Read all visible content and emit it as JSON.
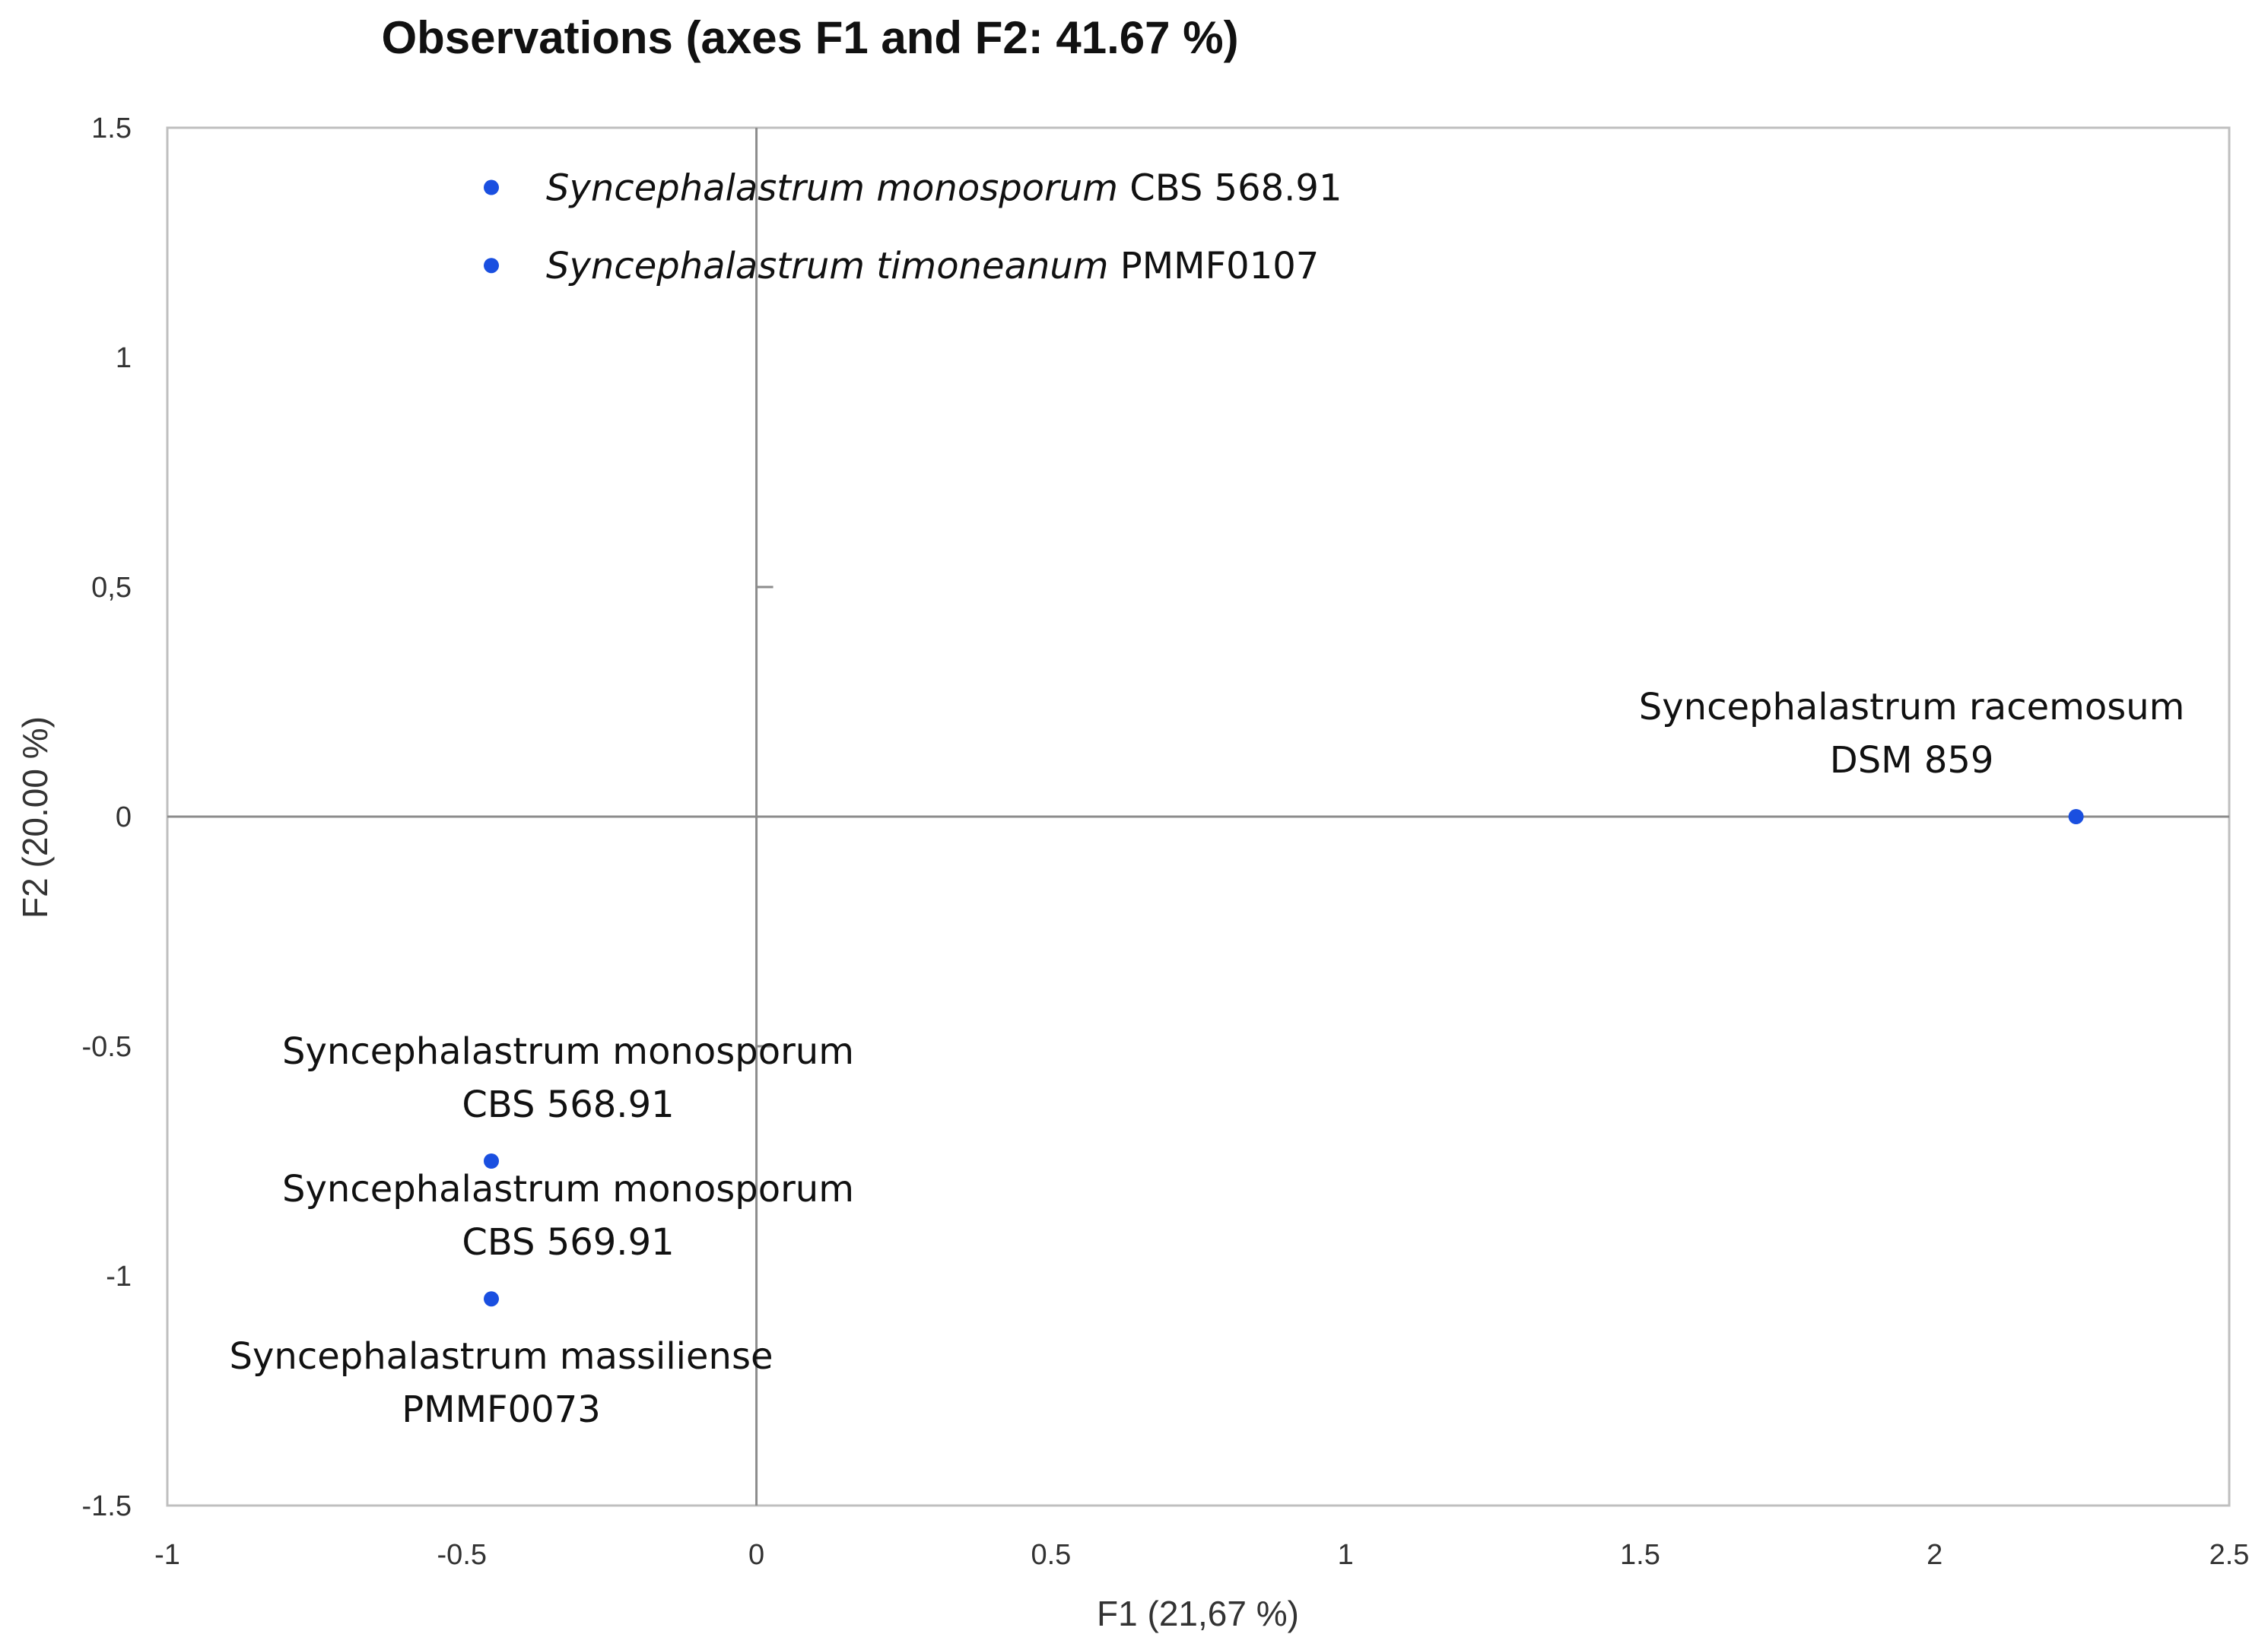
{
  "chart_data": {
    "type": "scatter",
    "title": "Observations (axes F1 and F2: 41.67 %)",
    "xlabel": "F1 (21,67 %)",
    "ylabel": "F2 (20.00 %)",
    "xlim": [
      -1,
      2.5
    ],
    "ylim": [
      -1.5,
      1.5
    ],
    "x_ticks": [
      {
        "value": -1,
        "label": "-1"
      },
      {
        "value": -0.5,
        "label": "-0.5"
      },
      {
        "value": 0,
        "label": "0"
      },
      {
        "value": 0.5,
        "label": "0.5"
      },
      {
        "value": 1,
        "label": "1"
      },
      {
        "value": 1.5,
        "label": "1.5"
      },
      {
        "value": 2,
        "label": "2"
      },
      {
        "value": 2.5,
        "label": "2.5"
      }
    ],
    "y_ticks": [
      {
        "value": 1.5,
        "label": "1.5"
      },
      {
        "value": 1,
        "label": "1"
      },
      {
        "value": 0.5,
        "label": "0,5"
      },
      {
        "value": 0,
        "label": "0"
      },
      {
        "value": -0.5,
        "label": "-0.5"
      },
      {
        "value": -1,
        "label": "-1"
      },
      {
        "value": -1.5,
        "label": "-1.5"
      }
    ],
    "grid": false,
    "marker_color": "#1a4fe0",
    "points": [
      {
        "x": -0.45,
        "y": 1.37,
        "species": "Syncephalastrum monosporum",
        "strain": "CBS 568.91",
        "label_layout": "right-inline"
      },
      {
        "x": -0.45,
        "y": 1.2,
        "species": "Syncephalastrum timoneanum",
        "strain": "PMMF0107",
        "label_layout": "right-inline"
      },
      {
        "x": 2.24,
        "y": 0.0,
        "species": "Syncephalastrum racemosum",
        "strain": "DSM 859",
        "label_layout": "above-stacked"
      },
      {
        "x": -0.45,
        "y": -0.75,
        "species": "Syncephalastrum monosporum",
        "strain": "CBS 568.91",
        "label_layout": "above-stacked"
      },
      {
        "x": -0.45,
        "y": -1.05,
        "species": "Syncephalastrum monosporum",
        "strain": "CBS 569.91",
        "label_layout": "above-stacked"
      },
      {
        "x": -0.45,
        "y": -1.05,
        "species": "Syncephalastrum massiliense",
        "strain": "PMMF0073",
        "label_layout": "below-stacked"
      }
    ]
  }
}
